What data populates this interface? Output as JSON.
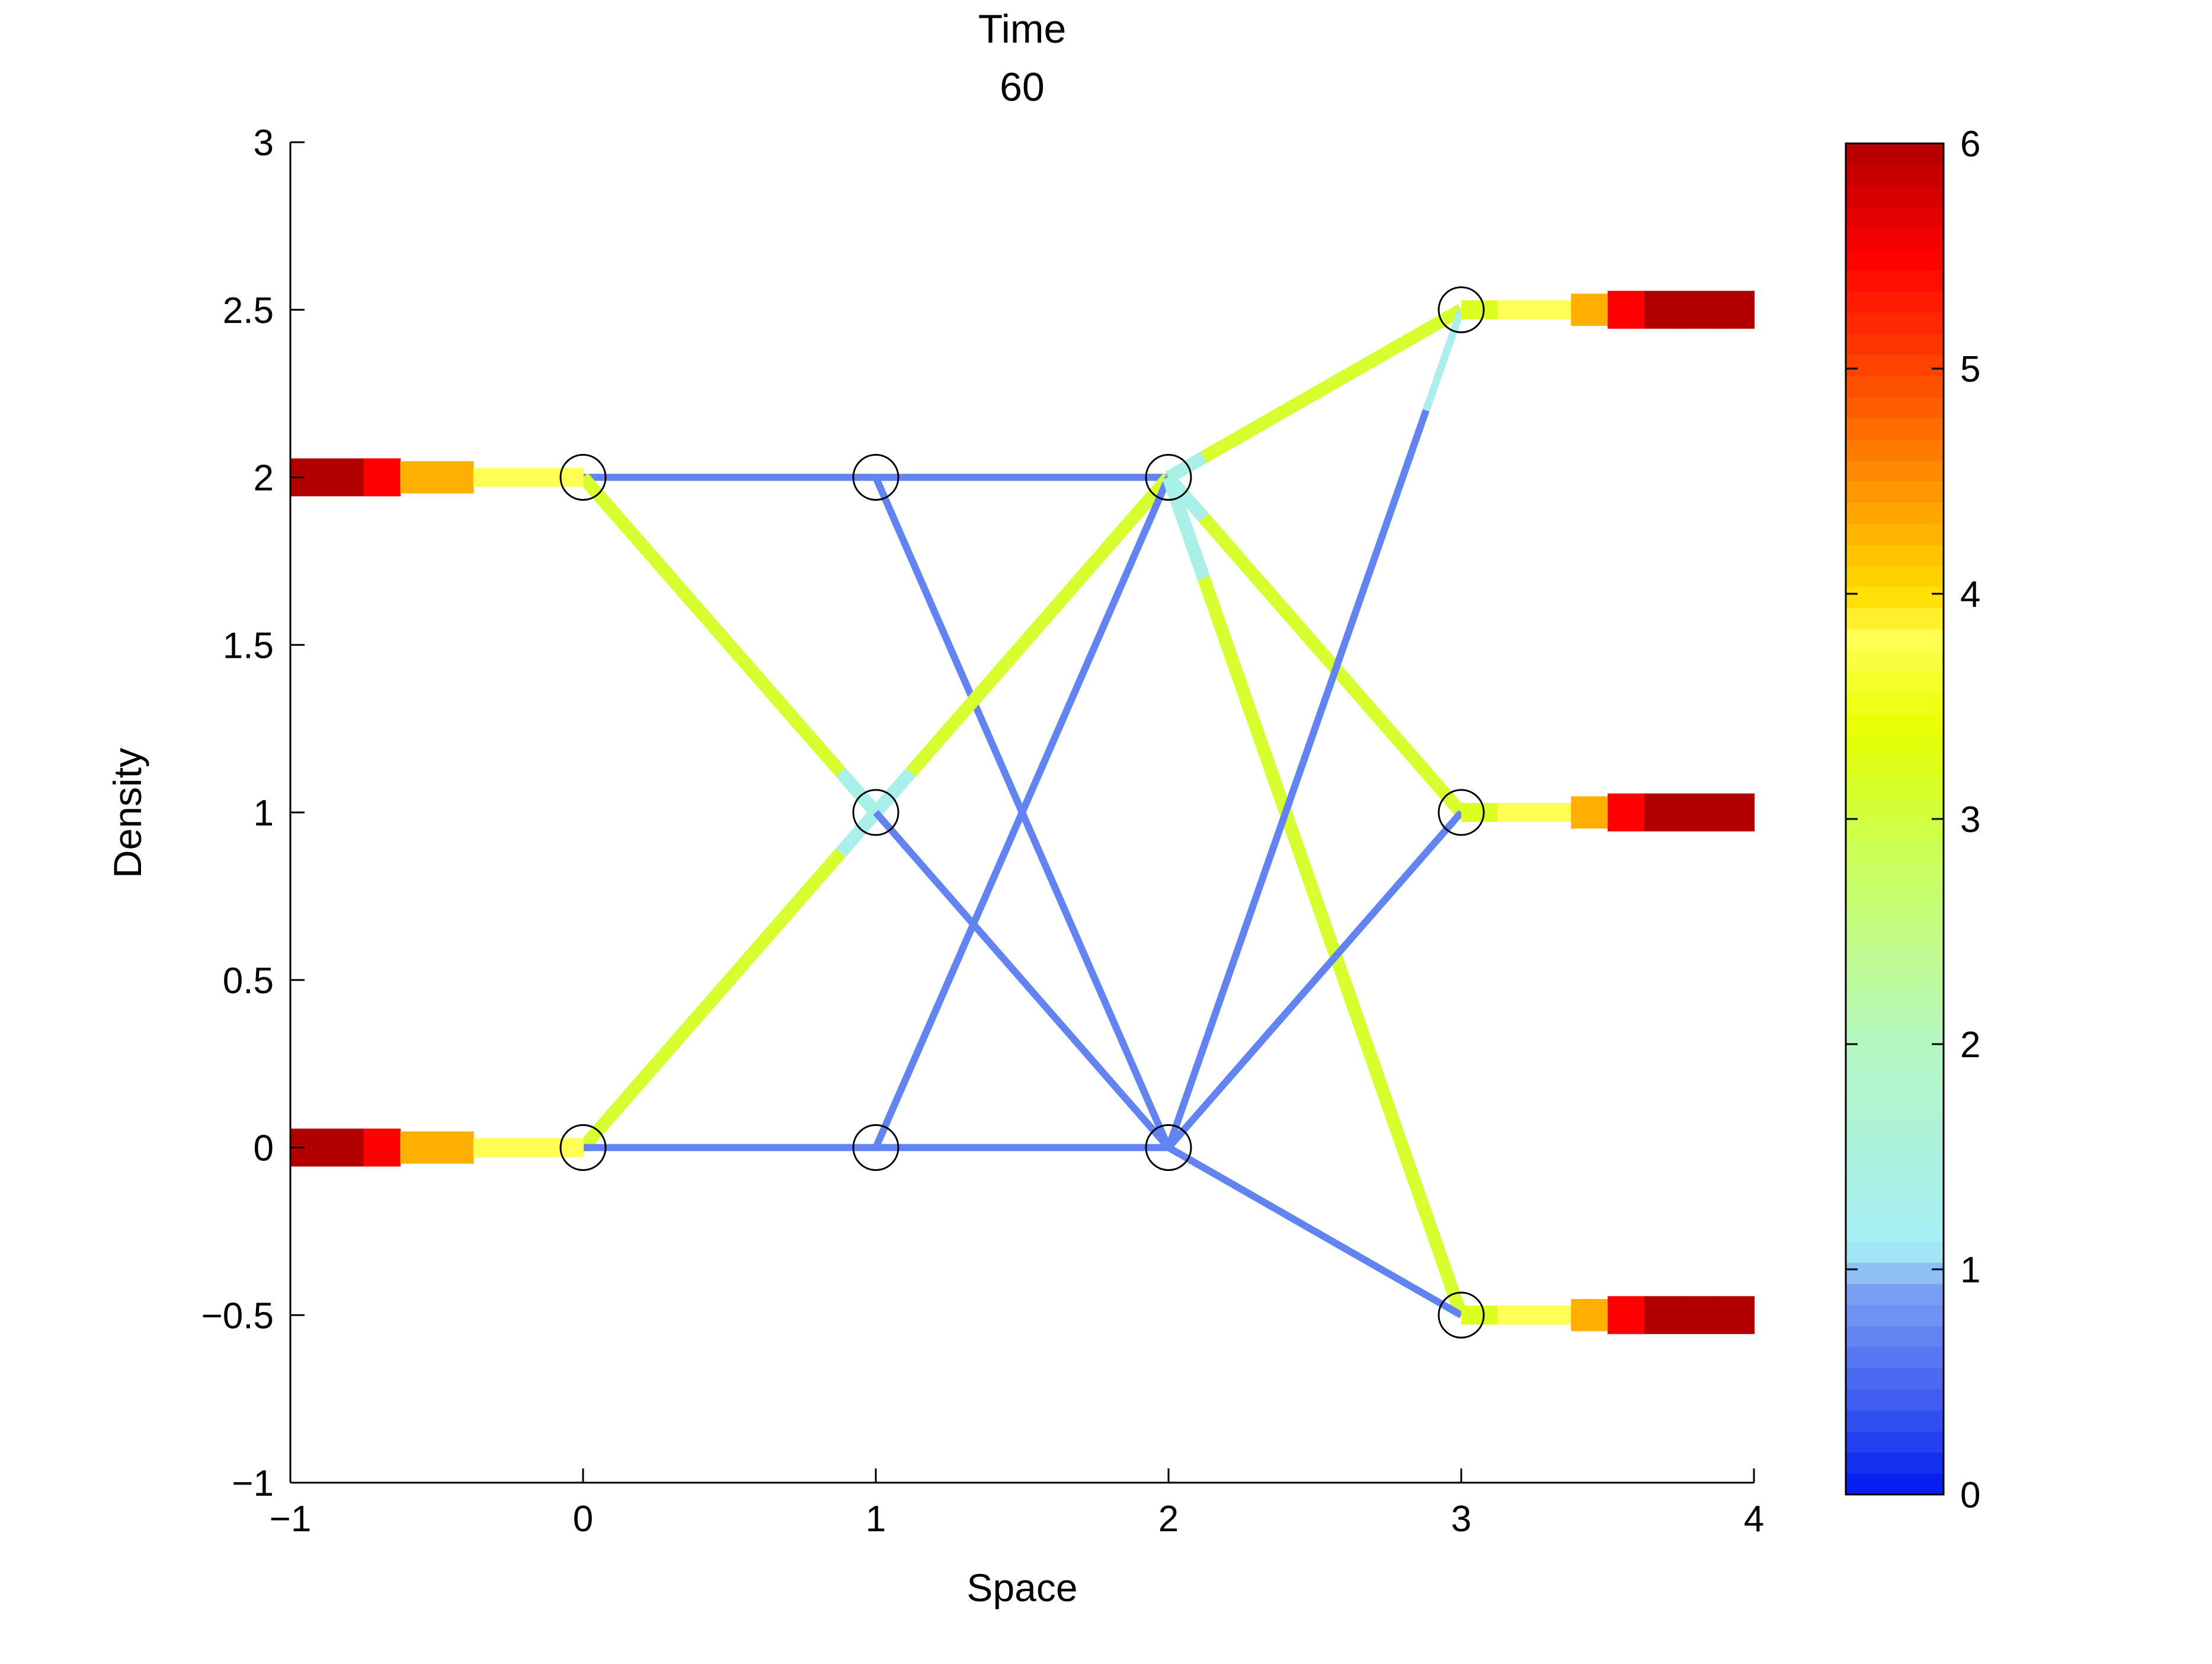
{
  "chart_data": {
    "type": "line",
    "title": [
      "Time",
      "60"
    ],
    "xlabel": "Space",
    "ylabel": "Density",
    "xlim": [
      -1,
      4
    ],
    "ylim": [
      -1,
      3
    ],
    "xticks": [
      -1,
      0,
      1,
      2,
      3,
      4
    ],
    "xtick_labels": [
      "−1",
      "0",
      "1",
      "2",
      "3",
      "4"
    ],
    "yticks": [
      -1,
      -0.5,
      0,
      0.5,
      1,
      1.5,
      2,
      2.5,
      3
    ],
    "ytick_labels": [
      "−1",
      "−0.5",
      "0",
      "0.5",
      "1",
      "1.5",
      "2",
      "2.5",
      "3"
    ],
    "grid": false,
    "nodes": [
      {
        "x": 0,
        "y": 2
      },
      {
        "x": 0,
        "y": 0
      },
      {
        "x": 1,
        "y": 2
      },
      {
        "x": 1,
        "y": 1
      },
      {
        "x": 1,
        "y": 0
      },
      {
        "x": 2,
        "y": 2
      },
      {
        "x": 2,
        "y": 0
      },
      {
        "x": 3,
        "y": 2.5
      },
      {
        "x": 3,
        "y": 1
      },
      {
        "x": 3,
        "y": -0.5
      }
    ],
    "edges": [
      {
        "from": [
          0,
          2
        ],
        "to": [
          1,
          2
        ],
        "density": 0.7
      },
      {
        "from": [
          0,
          2
        ],
        "to": [
          1,
          1
        ],
        "density": 3.1,
        "start_density": 3.1,
        "end_density": 1.3
      },
      {
        "from": [
          0,
          0
        ],
        "to": [
          1,
          1
        ],
        "density": 3.1,
        "end_density": 1.3
      },
      {
        "from": [
          0,
          0
        ],
        "to": [
          1,
          0
        ],
        "density": 0.7
      },
      {
        "from": [
          1,
          2
        ],
        "to": [
          2,
          2
        ],
        "density": 0.7
      },
      {
        "from": [
          1,
          2
        ],
        "to": [
          2,
          0
        ],
        "density": 0.7
      },
      {
        "from": [
          1,
          1
        ],
        "to": [
          2,
          2
        ],
        "density": 3.1,
        "start_density": 1.3
      },
      {
        "from": [
          1,
          1
        ],
        "to": [
          2,
          0
        ],
        "density": 0.7
      },
      {
        "from": [
          1,
          0
        ],
        "to": [
          2,
          2
        ],
        "density": 0.7
      },
      {
        "from": [
          1,
          0
        ],
        "to": [
          2,
          0
        ],
        "density": 0.7
      },
      {
        "from": [
          2,
          2
        ],
        "to": [
          3,
          2.5
        ],
        "density": 3.1,
        "start_density": 1.3
      },
      {
        "from": [
          2,
          2
        ],
        "to": [
          3,
          1
        ],
        "density": 3.1,
        "start_density": 1.3
      },
      {
        "from": [
          2,
          2
        ],
        "to": [
          3,
          -0.5
        ],
        "density": 3.1,
        "start_density": 1.3
      },
      {
        "from": [
          2,
          0
        ],
        "to": [
          3,
          2.5
        ],
        "density": 0.7,
        "end_density": 1.3
      },
      {
        "from": [
          2,
          0
        ],
        "to": [
          3,
          1
        ],
        "density": 0.7
      },
      {
        "from": [
          2,
          0
        ],
        "to": [
          3,
          -0.5
        ],
        "density": 0.7
      }
    ],
    "source_roads": [
      {
        "y": 2,
        "x_start": -1,
        "x_end": 0,
        "densities": [
          6,
          6,
          5.5,
          4.3,
          4.3,
          3.8,
          3.8,
          3.8
        ]
      },
      {
        "y": 0,
        "x_start": -1,
        "x_end": 0,
        "densities": [
          6,
          6,
          5.5,
          4.3,
          4.3,
          3.8,
          3.8,
          3.8
        ]
      }
    ],
    "sink_roads": [
      {
        "y": 2.5,
        "x_start": 3,
        "x_end": 4,
        "densities": [
          3.2,
          3.8,
          3.8,
          4.3,
          5.5,
          6,
          6,
          6
        ]
      },
      {
        "y": 1,
        "x_start": 3,
        "x_end": 4,
        "densities": [
          3.2,
          3.8,
          3.8,
          4.3,
          5.5,
          6,
          6,
          6
        ]
      },
      {
        "y": -0.5,
        "x_start": 3,
        "x_end": 4,
        "densities": [
          3.2,
          3.8,
          3.8,
          4.3,
          5.5,
          6,
          6,
          6
        ]
      }
    ],
    "colorbar": {
      "range": [
        0,
        6
      ],
      "ticks": [
        0,
        1,
        2,
        3,
        4,
        5,
        6
      ],
      "tick_labels": [
        "0",
        "1",
        "2",
        "3",
        "4",
        "5",
        "6"
      ],
      "colormap": "jet-like",
      "stops": [
        {
          "v": 0.0,
          "color": "#0018ef"
        },
        {
          "v": 0.4,
          "color": "#3c5af0"
        },
        {
          "v": 0.9,
          "color": "#7aa0f4"
        },
        {
          "v": 1.1,
          "color": "#a6eef6"
        },
        {
          "v": 2.0,
          "color": "#b4f7c2"
        },
        {
          "v": 2.9,
          "color": "#ccff50"
        },
        {
          "v": 3.4,
          "color": "#e8ff00"
        },
        {
          "v": 3.8,
          "color": "#ffff55"
        },
        {
          "v": 4.0,
          "color": "#ffdd00"
        },
        {
          "v": 4.5,
          "color": "#ff9000"
        },
        {
          "v": 5.0,
          "color": "#ff4400"
        },
        {
          "v": 5.5,
          "color": "#ff0000"
        },
        {
          "v": 6.0,
          "color": "#b20000"
        }
      ]
    }
  }
}
